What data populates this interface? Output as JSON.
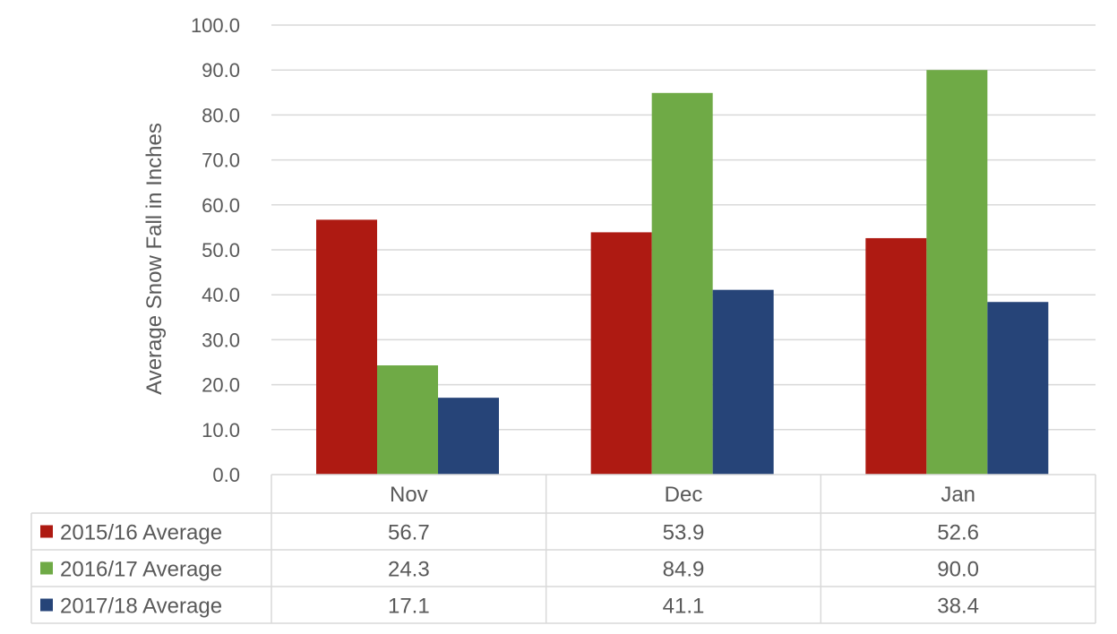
{
  "chart_data": {
    "type": "bar",
    "title": "",
    "xlabel": "",
    "ylabel": "Average Snow Fall in Inches",
    "ylim": [
      0,
      100
    ],
    "yticks": [
      "0.0",
      "10.0",
      "20.0",
      "30.0",
      "40.0",
      "50.0",
      "60.0",
      "70.0",
      "80.0",
      "90.0",
      "100.0"
    ],
    "grid": true,
    "legend": "data-table-left",
    "categories": [
      "Nov",
      "Dec",
      "Jan"
    ],
    "series": [
      {
        "name": "2015/16 Average",
        "color": "#AE1A12",
        "values": [
          56.7,
          53.9,
          52.6
        ],
        "labels": [
          "56.7",
          "53.9",
          "52.6"
        ]
      },
      {
        "name": "2016/17 Average",
        "color": "#6FAA46",
        "values": [
          24.3,
          84.9,
          90.0
        ],
        "labels": [
          "24.3",
          "84.9",
          "90.0"
        ]
      },
      {
        "name": "2017/18 Average",
        "color": "#264478",
        "values": [
          17.1,
          41.1,
          38.4
        ],
        "labels": [
          "17.1",
          "41.1",
          "38.4"
        ]
      }
    ]
  }
}
